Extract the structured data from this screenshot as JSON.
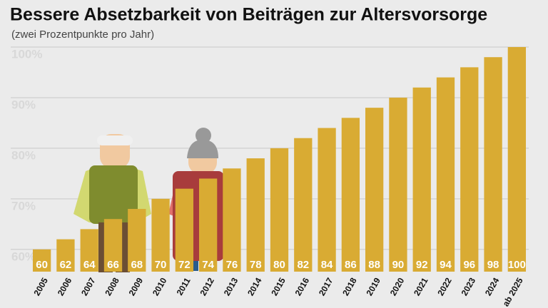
{
  "chart_data": {
    "type": "bar",
    "title": "Bessere Absetzbarkeit von Beiträgen zur Altersvorsorge",
    "subtitle": "(zwei Prozentpunkte pro Jahr)",
    "categories": [
      "2005",
      "2006",
      "2007",
      "2008",
      "2009",
      "2010",
      "2011",
      "2012",
      "2013",
      "2014",
      "2015",
      "2016",
      "2017",
      "2018",
      "2019",
      "2020",
      "2021",
      "2022",
      "2023",
      "2024",
      "ab 2025"
    ],
    "values": [
      60,
      62,
      64,
      66,
      68,
      70,
      72,
      74,
      76,
      78,
      80,
      82,
      84,
      86,
      88,
      90,
      92,
      94,
      96,
      98,
      100
    ],
    "color": "#d9ab33",
    "ylim": [
      55.6,
      100
    ],
    "yticks": [
      {
        "value": 60,
        "label": "60%"
      },
      {
        "value": 70,
        "label": "70%"
      },
      {
        "value": 80,
        "label": "80%"
      },
      {
        "value": 90,
        "label": "90%"
      },
      {
        "value": 100,
        "label": "100%"
      }
    ],
    "grid": true
  }
}
